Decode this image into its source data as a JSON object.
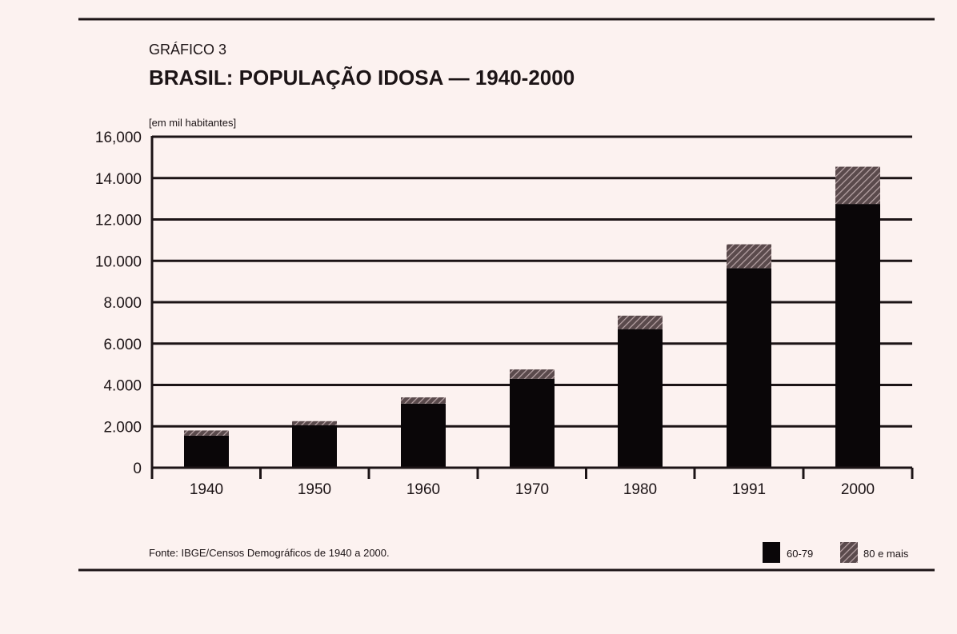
{
  "figure": {
    "label": "GRÁFICO 3",
    "title": "BRASIL: POPULAÇÃO IDOSA — 1940-2000",
    "unit": "[em mil habitantes]",
    "source": "Fonte: IBGE/Censos Demográficos de 1940 a 2000."
  },
  "colors": {
    "background": "#fcf2f0",
    "ink": "#1c1416",
    "bar_60_79": "#0a0608",
    "bar_80_mais": "#5a4a4c",
    "hatch": "#b8a4a6"
  },
  "chart_data": {
    "type": "bar",
    "stacked": true,
    "categories": [
      "1940",
      "1950",
      "1960",
      "1970",
      "1980",
      "1991",
      "2000"
    ],
    "series": [
      {
        "name": "60-79",
        "values": [
          1550,
          2050,
          3100,
          4300,
          6700,
          9650,
          12750
        ]
      },
      {
        "name": "80 e mais",
        "values": [
          250,
          200,
          300,
          450,
          650,
          1150,
          1800
        ]
      }
    ],
    "yticks": [
      "0",
      "2.000",
      "4.000",
      "6.000",
      "8.000",
      "10.000",
      "12.000",
      "14.000",
      "16,000"
    ],
    "ylim": [
      0,
      16000
    ],
    "grid": true,
    "legend": "bottom-right"
  }
}
